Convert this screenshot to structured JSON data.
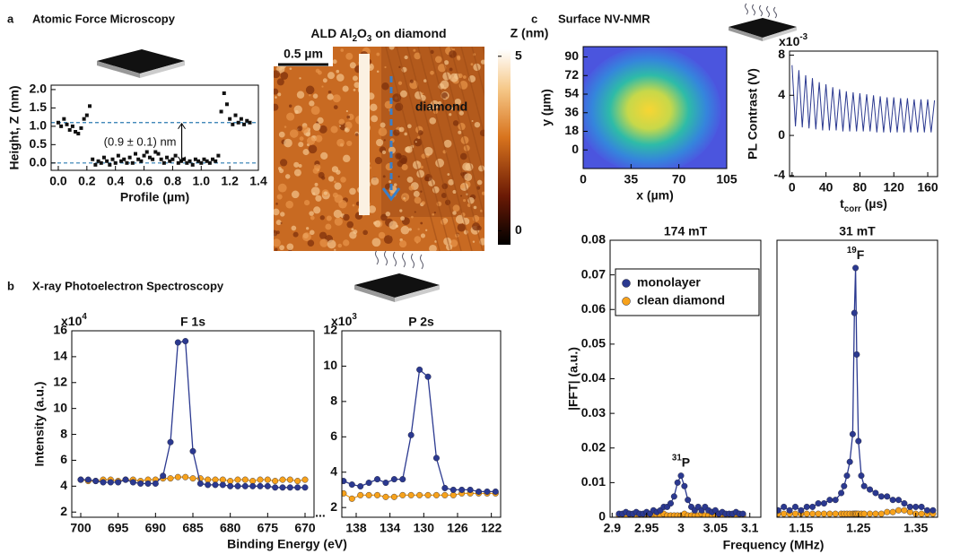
{
  "panels": [
    {
      "letter": "a",
      "title": "Atomic Force Microscopy"
    },
    {
      "letter": "b",
      "title": "X-ray Photoelectron Spectroscopy"
    },
    {
      "letter": "c",
      "title": "Surface NV-NMR"
    }
  ],
  "afm_image": {
    "title": [
      {
        "text": "ALD Al"
      },
      {
        "text": "2",
        "script": "sub"
      },
      {
        "text": "O"
      },
      {
        "text": "3",
        "script": "sub"
      },
      {
        "text": " on diamond"
      }
    ],
    "scale_bar": "0.5 µm",
    "region_label": "diamond",
    "colorbar_label": "Z (nm)",
    "colorbar_lim": [
      -0.4,
      5.2
    ],
    "colorbar_ticks": [
      0,
      5
    ]
  },
  "xps": {
    "xlabel": "Binding Energy (eV)",
    "break": "..."
  },
  "fft": {
    "xlabel": "Frequency (MHz)"
  },
  "chart_data": [
    {
      "type": "scatter",
      "xlabel": "Profile (µm)",
      "ylabel": "Height, Z (nm)",
      "color": "#111111",
      "annotation": "(0.9 ± 0.1) nm",
      "hlines": [
        0,
        1.1
      ],
      "hline_color": "#2a7ab0",
      "xlim": [
        -0.05,
        1.4
      ],
      "ylim": [
        -0.2,
        2.12
      ],
      "xticks": [
        {
          "value": 0,
          "label": "0.0"
        },
        {
          "value": 0.2,
          "label": "0.2"
        },
        {
          "value": 0.4,
          "label": "0.4"
        },
        {
          "value": 0.6,
          "label": "0.6"
        },
        {
          "value": 0.8,
          "label": "0.8"
        },
        {
          "value": 1,
          "label": "1.0"
        },
        {
          "value": 1.2,
          "label": "1.2"
        },
        {
          "value": 1.4,
          "label": "1.4"
        }
      ],
      "yticks": [
        {
          "value": 0,
          "label": "0.0"
        },
        {
          "value": 0.5,
          "label": "0.5"
        },
        {
          "value": 1,
          "label": "1.0"
        },
        {
          "value": 1.5,
          "label": "1.5"
        },
        {
          "value": 2,
          "label": "2.0"
        }
      ],
      "x": [
        0,
        0.02,
        0.04,
        0.06,
        0.08,
        0.1,
        0.12,
        0.14,
        0.16,
        0.18,
        0.2,
        0.22,
        0.24,
        0.26,
        0.28,
        0.3,
        0.32,
        0.34,
        0.36,
        0.38,
        0.4,
        0.42,
        0.44,
        0.46,
        0.48,
        0.5,
        0.52,
        0.54,
        0.56,
        0.58,
        0.6,
        0.62,
        0.64,
        0.66,
        0.68,
        0.7,
        0.72,
        0.74,
        0.76,
        0.78,
        0.8,
        0.82,
        0.84,
        0.86,
        0.88,
        0.9,
        0.92,
        0.94,
        0.96,
        0.98,
        1,
        1.02,
        1.04,
        1.06,
        1.08,
        1.1,
        1.12,
        1.14,
        1.16,
        1.18,
        1.2,
        1.22,
        1.24,
        1.26,
        1.28,
        1.3,
        1.32,
        1.34
      ],
      "values": [
        1.1,
        1,
        1.2,
        1.05,
        0.9,
        1,
        0.85,
        0.8,
        0.95,
        1.2,
        1.3,
        1.55,
        0.1,
        -0.05,
        0.05,
        0,
        0.15,
        0.05,
        -0.05,
        0.1,
        0,
        0.2,
        0.05,
        0.1,
        0,
        0.15,
        0,
        0.25,
        0.1,
        0.05,
        0.2,
        0.3,
        0.15,
        0.1,
        0.3,
        0.25,
        0.1,
        0,
        0.15,
        0.05,
        0.1,
        0.2,
        0,
        0.05,
        0.1,
        0,
        0.05,
        -0.05,
        0.1,
        0.05,
        0,
        0.1,
        0.05,
        0,
        0.1,
        0.05,
        0.2,
        1.4,
        1.9,
        1.6,
        1.2,
        1.05,
        1.3,
        1.1,
        1.2,
        1.05,
        1.15,
        1.1
      ]
    },
    {
      "type": "line",
      "markers": true,
      "title": "F 1s",
      "ylabel": "Intensity (a.u.)",
      "exponent": [
        {
          "text": "x10"
        },
        {
          "text": "4",
          "script": "sup"
        }
      ],
      "xlim": [
        701.2,
        668.8
      ],
      "ylim": [
        1.6,
        16
      ],
      "xticks": [
        700,
        695,
        690,
        685,
        680,
        675,
        670
      ],
      "yticks": [
        2,
        4,
        6,
        8,
        10,
        12,
        14,
        16
      ],
      "x": [
        700,
        699,
        698,
        697,
        696,
        695,
        694,
        693,
        692,
        691,
        690,
        689,
        688,
        687,
        686,
        685,
        684,
        683,
        682,
        681,
        680,
        679,
        678,
        677,
        676,
        675,
        674,
        673,
        672,
        671,
        670
      ],
      "series": [
        {
          "name": "monolayer",
          "color": "#2b3990",
          "values": [
            4.5,
            4.5,
            4.4,
            4.3,
            4.3,
            4.3,
            4.5,
            4.3,
            4.2,
            4.2,
            4.2,
            4.8,
            7.4,
            15.1,
            15.2,
            6.7,
            4.2,
            4.1,
            4.1,
            4.1,
            4,
            4,
            4,
            4,
            4,
            4,
            3.9,
            3.9,
            3.9,
            3.9,
            3.9
          ]
        },
        {
          "name": "clean diamond",
          "color": "#f7a21b",
          "values": [
            4.5,
            4.4,
            4.4,
            4.5,
            4.5,
            4.4,
            4.5,
            4.5,
            4.4,
            4.5,
            4.5,
            4.6,
            4.6,
            4.7,
            4.7,
            4.6,
            4.6,
            4.5,
            4.5,
            4.5,
            4.4,
            4.5,
            4.5,
            4.4,
            4.5,
            4.5,
            4.4,
            4.5,
            4.5,
            4.4,
            4.5
          ]
        }
      ]
    },
    {
      "type": "line",
      "markers": true,
      "title": "P 2s",
      "exponent": [
        {
          "text": "x10"
        },
        {
          "text": "3",
          "script": "sup"
        }
      ],
      "xlim": [
        139.7,
        120.9
      ],
      "ylim": [
        1.45,
        12
      ],
      "xticks": [
        138,
        134,
        130,
        126,
        122
      ],
      "yticks": [
        2,
        4,
        6,
        8,
        10,
        12
      ],
      "x": [
        139.5,
        138.5,
        137.5,
        136.5,
        135.5,
        134.5,
        133.5,
        132.5,
        131.5,
        130.5,
        129.5,
        128.5,
        127.5,
        126.5,
        125.5,
        124.5,
        123.5,
        122.5,
        121.5
      ],
      "series": [
        {
          "name": "monolayer",
          "color": "#2b3990",
          "values": [
            3.5,
            3.3,
            3.2,
            3.4,
            3.6,
            3.4,
            3.6,
            3.6,
            6.1,
            9.8,
            9.4,
            4.8,
            3.1,
            3,
            3,
            3,
            2.9,
            2.9,
            2.9
          ]
        },
        {
          "name": "clean diamond",
          "color": "#f7a21b",
          "values": [
            2.8,
            2.5,
            2.7,
            2.7,
            2.7,
            2.6,
            2.6,
            2.7,
            2.7,
            2.7,
            2.7,
            2.7,
            2.7,
            2.7,
            2.8,
            2.8,
            2.8,
            2.8,
            2.8
          ]
        }
      ]
    },
    {
      "type": "image",
      "xlabel": "x (µm)",
      "ylabel": "y (µm)",
      "xlim": [
        0,
        105
      ],
      "ylim": [
        -18,
        100
      ],
      "xticks": [
        0,
        35,
        70,
        105
      ],
      "yticks": [
        0,
        18,
        36,
        54,
        72,
        90
      ]
    },
    {
      "type": "line",
      "color": "#2b3990",
      "xlabel": [
        {
          "text": "t"
        },
        {
          "text": "corr",
          "script": "sub"
        },
        {
          "text": " (µs)"
        }
      ],
      "ylabel": "PL Contrast (V)",
      "exponent": [
        {
          "text": "x10"
        },
        {
          "text": "-3",
          "script": "sup"
        }
      ],
      "xlim": [
        -3,
        171.6
      ],
      "ylim": [
        -4.1,
        8.4
      ],
      "xticks": [
        0,
        40,
        80,
        120,
        160
      ],
      "yticks": [
        -4,
        0,
        4,
        8
      ],
      "x": [
        0,
        4,
        8,
        12,
        16,
        20,
        24,
        28,
        32,
        36,
        40,
        44,
        48,
        52,
        56,
        60,
        64,
        68,
        72,
        76,
        80,
        84,
        88,
        92,
        96,
        100,
        104,
        108,
        112,
        116,
        120,
        124,
        128,
        132,
        136,
        140,
        144,
        148,
        152,
        156,
        160,
        164,
        168
      ],
      "values": [
        7,
        0.9,
        6.5,
        0.8,
        6,
        0.7,
        5.7,
        0.6,
        5.3,
        0.5,
        5.1,
        0.5,
        4.8,
        0.5,
        4.6,
        0.4,
        4.4,
        0.4,
        4.3,
        0.4,
        4.2,
        0.4,
        4.1,
        0.4,
        4,
        0.3,
        3.9,
        0.3,
        3.8,
        0.3,
        3.8,
        0.3,
        3.7,
        0.3,
        3.7,
        0.3,
        3.6,
        0.3,
        3.6,
        0.3,
        3.6,
        0.3,
        3.5
      ]
    },
    {
      "type": "line",
      "markers": true,
      "title": "174 mT",
      "ylabel": "|FFT| (a.u.)",
      "legend": "upper left",
      "annotation": [
        {
          "text": "31",
          "script": "sup"
        },
        {
          "text": "P"
        }
      ],
      "xlim": [
        2.897,
        3.116
      ],
      "ylim": [
        0,
        0.08
      ],
      "xticks": [
        2.9,
        2.95,
        3,
        3.05,
        3.1
      ],
      "yticks": [
        0,
        0.01,
        0.02,
        0.03,
        0.04,
        0.05,
        0.06,
        0.07,
        0.08
      ],
      "x": [
        2.91,
        2.915,
        2.92,
        2.925,
        2.93,
        2.935,
        2.94,
        2.945,
        2.95,
        2.955,
        2.96,
        2.965,
        2.97,
        2.975,
        2.98,
        2.985,
        2.99,
        2.995,
        3,
        3.005,
        3.01,
        3.015,
        3.02,
        3.025,
        3.03,
        3.035,
        3.04,
        3.045,
        3.05,
        3.055,
        3.06,
        3.065,
        3.07,
        3.075,
        3.08,
        3.085,
        3.09
      ],
      "series": [
        {
          "name": "monolayer",
          "color": "#2b3990",
          "values": [
            0.001,
            0.001,
            0.0015,
            0.001,
            0.001,
            0.0015,
            0.001,
            0.001,
            0.0015,
            0.001,
            0.002,
            0.0015,
            0.002,
            0.003,
            0.003,
            0.004,
            0.006,
            0.01,
            0.012,
            0.009,
            0.005,
            0.003,
            0.002,
            0.003,
            0.002,
            0.003,
            0.002,
            0.0015,
            0.002,
            0.001,
            0.0015,
            0.001,
            0.001,
            0.001,
            0.0015,
            0.001,
            0.001
          ]
        },
        {
          "name": "clean diamond",
          "color": "#f7a21b",
          "values": [
            0.0005,
            0.0005,
            0.0005,
            0.001,
            0.0005,
            0.0005,
            0.0005,
            0.0005,
            0.001,
            0.0005,
            0.0005,
            0.0005,
            0.0005,
            0.001,
            0.0005,
            0.0005,
            0.0005,
            0.0005,
            0.0005,
            0.001,
            0.0005,
            0.0005,
            0.0005,
            0.0005,
            0.001,
            0.0005,
            0.0005,
            0.0005,
            0.0005,
            0.001,
            0.0005,
            0.0005,
            0.0005,
            0.0005,
            0.0005,
            0.0005,
            0.0005
          ]
        }
      ]
    },
    {
      "type": "line",
      "markers": true,
      "title": "31 mT",
      "annotation": [
        {
          "text": "19",
          "script": "sup"
        },
        {
          "text": "F"
        }
      ],
      "xlim": [
        1.108,
        1.388
      ],
      "ylim": [
        0,
        0.08
      ],
      "xticks": [
        1.15,
        1.25,
        1.35
      ],
      "x": [
        1.11,
        1.12,
        1.13,
        1.14,
        1.15,
        1.16,
        1.17,
        1.18,
        1.19,
        1.2,
        1.21,
        1.22,
        1.225,
        1.23,
        1.235,
        1.24,
        1.243,
        1.245,
        1.247,
        1.25,
        1.255,
        1.26,
        1.27,
        1.28,
        1.29,
        1.3,
        1.31,
        1.32,
        1.33,
        1.34,
        1.35,
        1.36,
        1.37,
        1.38
      ],
      "series": [
        {
          "name": "monolayer",
          "color": "#2b3990",
          "values": [
            0.002,
            0.003,
            0.002,
            0.003,
            0.002,
            0.003,
            0.003,
            0.004,
            0.004,
            0.005,
            0.005,
            0.007,
            0.009,
            0.012,
            0.016,
            0.024,
            0.059,
            0.072,
            0.047,
            0.022,
            0.012,
            0.009,
            0.008,
            0.007,
            0.006,
            0.006,
            0.005,
            0.005,
            0.004,
            0.003,
            0.003,
            0.003,
            0.002,
            0.002
          ]
        },
        {
          "name": "clean diamond",
          "color": "#f7a21b",
          "values": [
            0.001,
            0.001,
            0.001,
            0.001,
            0.001,
            0.001,
            0.001,
            0.001,
            0.001,
            0.001,
            0.001,
            0.001,
            0.001,
            0.001,
            0.001,
            0.001,
            0.001,
            0.001,
            0.001,
            0.001,
            0.001,
            0.001,
            0.001,
            0.001,
            0.001,
            0.0015,
            0.0015,
            0.002,
            0.002,
            0.0015,
            0.001,
            0.001,
            0.001,
            0.001
          ]
        }
      ]
    }
  ]
}
